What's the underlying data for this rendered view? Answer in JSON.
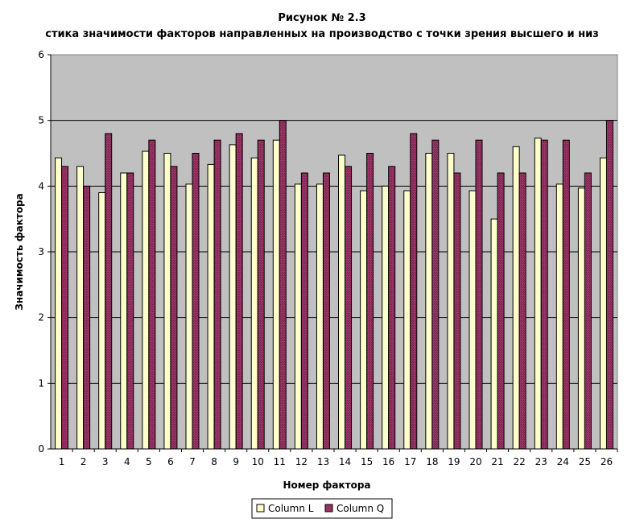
{
  "chart_data": {
    "type": "bar",
    "title": "Рисунок № 2.3",
    "subtitle": "стика значимости факторов направленных на производство с точки зрения высшего и низ",
    "xlabel": "Номер фактора",
    "ylabel": "Значимость фактора",
    "ylim": [
      0,
      6
    ],
    "yticks": [
      0,
      1,
      2,
      3,
      4,
      5,
      6
    ],
    "grid": true,
    "legend_position": "bottom",
    "categories": [
      "1",
      "2",
      "3",
      "4",
      "5",
      "6",
      "7",
      "8",
      "9",
      "10",
      "11",
      "12",
      "13",
      "14",
      "15",
      "16",
      "17",
      "18",
      "19",
      "20",
      "21",
      "22",
      "23",
      "24",
      "25",
      "26"
    ],
    "series": [
      {
        "name": "Column L",
        "color": "#ffffcc",
        "values": [
          4.43,
          4.3,
          3.9,
          4.2,
          4.53,
          4.5,
          4.03,
          4.33,
          4.63,
          4.43,
          4.7,
          4.03,
          4.03,
          4.47,
          3.93,
          4.0,
          3.93,
          4.5,
          4.5,
          3.93,
          3.5,
          4.6,
          4.73,
          4.03,
          3.97,
          4.43
        ]
      },
      {
        "name": "Column Q",
        "color": "#993366",
        "values": [
          4.3,
          4.0,
          4.8,
          4.2,
          4.7,
          4.3,
          4.5,
          4.7,
          4.8,
          4.7,
          5.0,
          4.2,
          4.2,
          4.3,
          4.5,
          4.3,
          4.8,
          4.7,
          4.2,
          4.7,
          4.2,
          4.2,
          4.7,
          4.7,
          4.2,
          5.0
        ]
      }
    ],
    "plot_background": "#c0c0c0"
  }
}
